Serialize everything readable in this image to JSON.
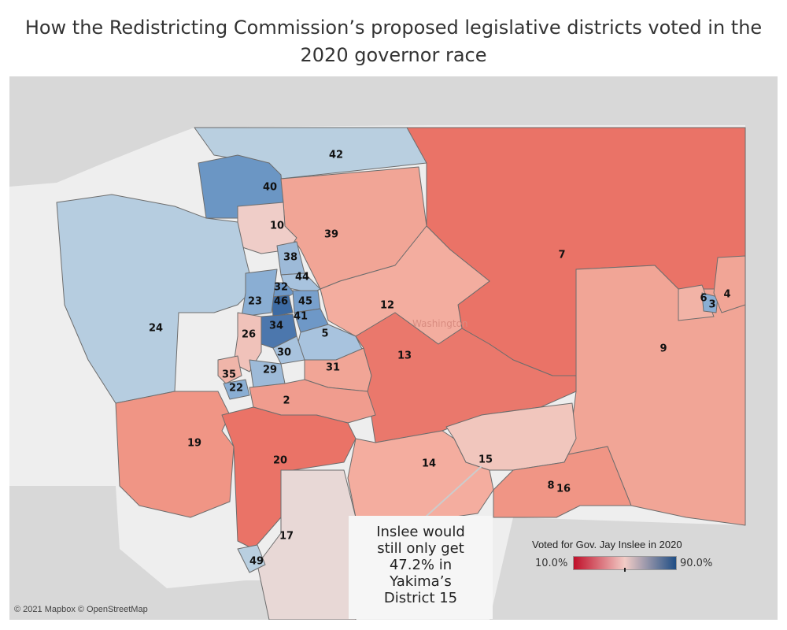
{
  "title": "How the Redistricting Commission’s proposed legislative districts voted in the 2020 governor race",
  "state_label": "Washington",
  "callout": {
    "lines": [
      "Inslee would",
      "still only get",
      "47.2% in",
      "Yakima’s",
      "District 15"
    ]
  },
  "legend": {
    "title": "Voted for Gov. Jay Inslee in 2020",
    "min_label": "10.0%",
    "max_label": "90.0%",
    "colors": {
      "low": "#c0102a",
      "mid": "#f2ccc6",
      "high": "#1f4e85"
    }
  },
  "attribution": "© 2021 Mapbox © OpenStreetMap",
  "colors": {
    "water": "#eeeeee",
    "land": "#d8d8d8",
    "border": "#6d6d6d"
  },
  "districts": [
    {
      "id": "42",
      "color": "#b9cfe0"
    },
    {
      "id": "40",
      "color": "#6b96c4"
    },
    {
      "id": "10",
      "color": "#efcdc8"
    },
    {
      "id": "39",
      "color": "#f1a596"
    },
    {
      "id": "7",
      "color": "#ea7367"
    },
    {
      "id": "24",
      "color": "#b6cde0"
    },
    {
      "id": "38",
      "color": "#9dbad8"
    },
    {
      "id": "44",
      "color": "#a8c3de"
    },
    {
      "id": "32",
      "color": "#6e98c7"
    },
    {
      "id": "46",
      "color": "#3d6ba3"
    },
    {
      "id": "45",
      "color": "#78a0cc"
    },
    {
      "id": "23",
      "color": "#8aaed3"
    },
    {
      "id": "41",
      "color": "#6e98c7"
    },
    {
      "id": "34",
      "color": "#4c77ad"
    },
    {
      "id": "26",
      "color": "#f0c2ba"
    },
    {
      "id": "5",
      "color": "#a8c3de"
    },
    {
      "id": "12",
      "color": "#f3ad9f"
    },
    {
      "id": "13",
      "color": "#ea786c"
    },
    {
      "id": "6",
      "color": "#f2b3a6"
    },
    {
      "id": "3",
      "color": "#8aaed3"
    },
    {
      "id": "4",
      "color": "#f1a596"
    },
    {
      "id": "9",
      "color": "#f1a596"
    },
    {
      "id": "30",
      "color": "#a8c3de"
    },
    {
      "id": "29",
      "color": "#9dbad8"
    },
    {
      "id": "31",
      "color": "#f1a596"
    },
    {
      "id": "35",
      "color": "#f0b5a9"
    },
    {
      "id": "22",
      "color": "#8aaed3"
    },
    {
      "id": "2",
      "color": "#f09c8e"
    },
    {
      "id": "19",
      "color": "#f09585"
    },
    {
      "id": "20",
      "color": "#ea7367"
    },
    {
      "id": "14",
      "color": "#f4ad9f"
    },
    {
      "id": "15",
      "color": "#f1c6bd"
    },
    {
      "id": "8",
      "color": "#ee9182"
    },
    {
      "id": "16",
      "color": "#f09585"
    },
    {
      "id": "17",
      "color": "#e8d8d6"
    },
    {
      "id": "49",
      "color": "#b9cfe0"
    }
  ]
}
